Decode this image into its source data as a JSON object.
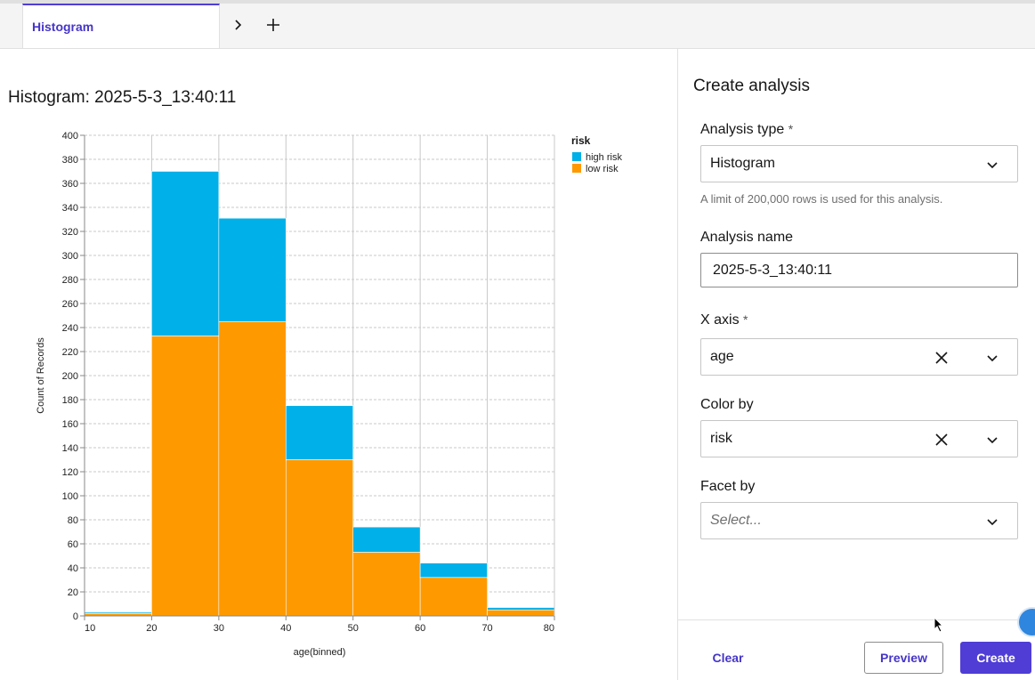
{
  "tabs": {
    "active_label": "Histogram"
  },
  "chart_title": "Histogram: 2025-5-3_13:40:11",
  "chart_data": {
    "type": "bar",
    "stacked": true,
    "x_bins": [
      10,
      20,
      30,
      40,
      50,
      60,
      70,
      80
    ],
    "categories": [
      "10-20",
      "20-30",
      "30-40",
      "40-50",
      "50-60",
      "60-70",
      "70-80"
    ],
    "series": [
      {
        "name": "low risk",
        "color": "#ff9900",
        "values": [
          2,
          233,
          245,
          130,
          53,
          32,
          5
        ]
      },
      {
        "name": "high risk",
        "color": "#00b0e8",
        "values": [
          1,
          137,
          86,
          45,
          21,
          12,
          2
        ]
      }
    ],
    "xlabel": "age(binned)",
    "ylabel": "Count of Records",
    "ylim": [
      0,
      400
    ],
    "yticks": [
      "0",
      "20",
      "40",
      "60",
      "80",
      "100",
      "120",
      "140",
      "160",
      "180",
      "200",
      "220",
      "240",
      "260",
      "280",
      "300",
      "320",
      "340",
      "360",
      "380",
      "400"
    ],
    "xticks": [
      "10",
      "20",
      "30",
      "40",
      "50",
      "60",
      "70",
      "80"
    ],
    "legend": {
      "title": "risk",
      "position": "top-right",
      "entries": [
        "high risk",
        "low risk"
      ]
    },
    "grid": true
  },
  "panel": {
    "title": "Create analysis",
    "analysis_type": {
      "label": "Analysis type",
      "required": "*",
      "value": "Histogram"
    },
    "helper": "A limit of 200,000 rows is used for this analysis.",
    "analysis_name": {
      "label": "Analysis name",
      "value": "2025-5-3_13:40:11"
    },
    "x_axis": {
      "label": "X axis",
      "required": "*",
      "value": "age"
    },
    "color_by": {
      "label": "Color by",
      "value": "risk"
    },
    "facet_by": {
      "label": "Facet by",
      "placeholder": "Select..."
    }
  },
  "buttons": {
    "clear": "Clear",
    "preview": "Preview",
    "create": "Create"
  },
  "icons": {
    "chevron": "chevron-down-icon",
    "clear": "close-icon",
    "add": "plus-icon",
    "next": "chevron-right-icon",
    "chat": "chat-icon"
  }
}
